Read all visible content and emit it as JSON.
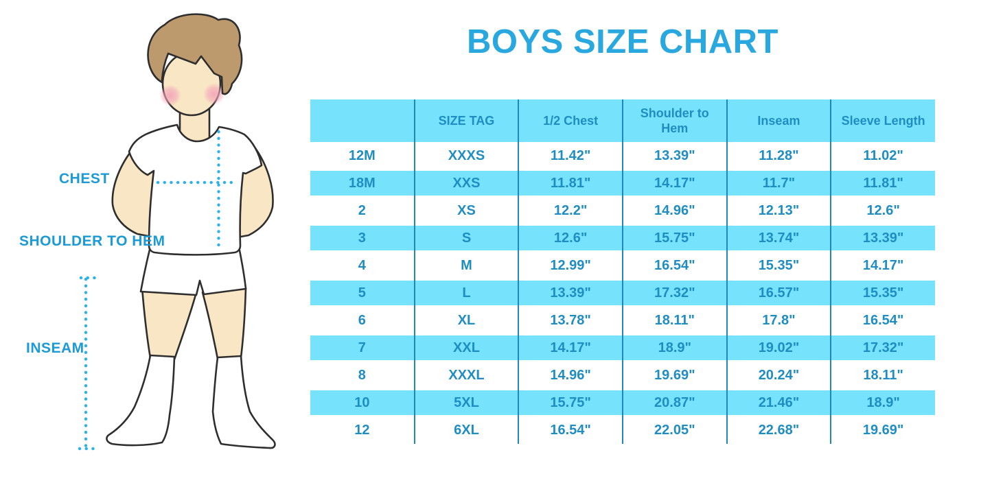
{
  "title": "BOYS SIZE CHART",
  "figure": {
    "labels": {
      "chest": "CHEST",
      "shoulder_to_hem": "SHOULDER TO HEM",
      "inseam": "INSEAM"
    }
  },
  "colors": {
    "stripe": "#76E2FC",
    "table_text": "#1F8DC2",
    "divider": "#1E87BD",
    "title_color": "#29A8E0",
    "label_color": "#1B9AD6",
    "dot_line": "#2BB3E9",
    "hair": "#BC9A6E",
    "skin": "#F9E6C4",
    "cheek": "#F2A3B8",
    "outline": "#2E2E2E"
  },
  "chart_data": {
    "type": "table",
    "title": "BOYS SIZE CHART",
    "columns": [
      "",
      "SIZE TAG",
      "1/2 Chest",
      "Shoulder to Hem",
      "Inseam",
      "Sleeve Length"
    ],
    "rows": [
      [
        "12M",
        "XXXS",
        "11.42\"",
        "13.39\"",
        "11.28\"",
        "11.02\""
      ],
      [
        "18M",
        "XXS",
        "11.81\"",
        "14.17\"",
        "11.7\"",
        "11.81\""
      ],
      [
        "2",
        "XS",
        "12.2\"",
        "14.96\"",
        "12.13\"",
        "12.6\""
      ],
      [
        "3",
        "S",
        "12.6\"",
        "15.75\"",
        "13.74\"",
        "13.39\""
      ],
      [
        "4",
        "M",
        "12.99\"",
        "16.54\"",
        "15.35\"",
        "14.17\""
      ],
      [
        "5",
        "L",
        "13.39\"",
        "17.32\"",
        "16.57\"",
        "15.35\""
      ],
      [
        "6",
        "XL",
        "13.78\"",
        "18.11\"",
        "17.8\"",
        "16.54\""
      ],
      [
        "7",
        "XXL",
        "14.17\"",
        "18.9\"",
        "19.02\"",
        "17.32\""
      ],
      [
        "8",
        "XXXL",
        "14.96\"",
        "19.69\"",
        "20.24\"",
        "18.11\""
      ],
      [
        "10",
        "5XL",
        "15.75\"",
        "20.87\"",
        "21.46\"",
        "18.9\""
      ],
      [
        "12",
        "6XL",
        "16.54\"",
        "22.05\"",
        "22.68\"",
        "19.69\""
      ]
    ],
    "striped_row_indices": [
      1,
      3,
      5,
      7,
      9
    ],
    "header_striped": true,
    "grid": "column-dividers",
    "legend_position": "none"
  }
}
